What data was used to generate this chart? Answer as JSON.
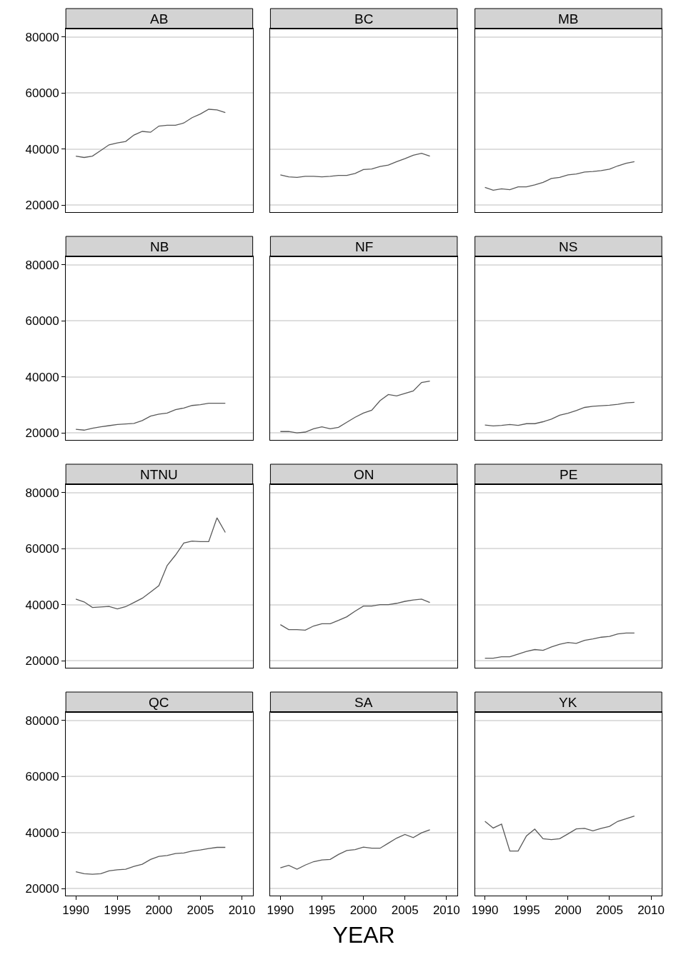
{
  "chart_data": [
    {
      "type": "line",
      "title": "AB",
      "x": [
        1990,
        1991,
        1992,
        1993,
        1994,
        1995,
        1996,
        1997,
        1998,
        1999,
        2000,
        2001,
        2002,
        2003,
        2004,
        2005,
        2006,
        2007,
        2008
      ],
      "series": [
        {
          "color": "#595959",
          "values": [
            37500,
            37000,
            37500,
            39500,
            41500,
            42200,
            42700,
            45000,
            46300,
            46000,
            48200,
            48500,
            48500,
            49300,
            51200,
            52500,
            54200,
            54000,
            53000
          ]
        }
      ],
      "xlim": [
        1988.8,
        2011.3
      ],
      "ylim": [
        17500,
        83000
      ],
      "xticks": [
        1990,
        1995,
        2000,
        2005,
        2010
      ],
      "yticks": [
        20000,
        40000,
        60000,
        80000
      ],
      "grid": "y",
      "tick_labels": "y"
    },
    {
      "type": "line",
      "title": "BC",
      "x": [
        1990,
        1991,
        1992,
        1993,
        1994,
        1995,
        1996,
        1997,
        1998,
        1999,
        2000,
        2001,
        2002,
        2003,
        2004,
        2005,
        2006,
        2007,
        2008
      ],
      "series": [
        {
          "color": "#595959",
          "values": [
            30800,
            30100,
            29900,
            30300,
            30300,
            30100,
            30300,
            30600,
            30600,
            31300,
            32700,
            32900,
            33800,
            34300,
            35500,
            36600,
            37800,
            38500,
            37500
          ]
        }
      ],
      "xlim": [
        1988.8,
        2011.3
      ],
      "ylim": [
        17500,
        83000
      ],
      "xticks": [
        1990,
        1995,
        2000,
        2005,
        2010
      ],
      "yticks": [
        20000,
        40000,
        60000,
        80000
      ],
      "grid": "y",
      "tick_labels": false
    },
    {
      "type": "line",
      "title": "MB",
      "x": [
        1990,
        1991,
        1992,
        1993,
        1994,
        1995,
        1996,
        1997,
        1998,
        1999,
        2000,
        2001,
        2002,
        2003,
        2004,
        2005,
        2006,
        2007,
        2008
      ],
      "series": [
        {
          "color": "#595959",
          "values": [
            26300,
            25300,
            25800,
            25500,
            26500,
            26500,
            27200,
            28100,
            29500,
            29900,
            30800,
            31100,
            31800,
            32000,
            32300,
            32800,
            34000,
            34900,
            35500
          ]
        }
      ],
      "xlim": [
        1988.8,
        2011.3
      ],
      "ylim": [
        17500,
        83000
      ],
      "xticks": [
        1990,
        1995,
        2000,
        2005,
        2010
      ],
      "yticks": [
        20000,
        40000,
        60000,
        80000
      ],
      "grid": "y",
      "tick_labels": false
    },
    {
      "type": "line",
      "title": "NB",
      "x": [
        1990,
        1991,
        1992,
        1993,
        1994,
        1995,
        1996,
        1997,
        1998,
        1999,
        2000,
        2001,
        2002,
        2003,
        2004,
        2005,
        2006,
        2007,
        2008
      ],
      "series": [
        {
          "color": "#595959",
          "values": [
            21300,
            21000,
            21700,
            22200,
            22600,
            23000,
            23200,
            23400,
            24400,
            26000,
            26700,
            27100,
            28300,
            28900,
            29800,
            30100,
            30600,
            30600,
            30600
          ]
        }
      ],
      "xlim": [
        1988.8,
        2011.3
      ],
      "ylim": [
        17500,
        83000
      ],
      "xticks": [
        1990,
        1995,
        2000,
        2005,
        2010
      ],
      "yticks": [
        20000,
        40000,
        60000,
        80000
      ],
      "grid": "y",
      "tick_labels": "y"
    },
    {
      "type": "line",
      "title": "NF",
      "x": [
        1990,
        1991,
        1992,
        1993,
        1994,
        1995,
        1996,
        1997,
        1998,
        1999,
        2000,
        2001,
        2002,
        2003,
        2004,
        2005,
        2006,
        2007,
        2008
      ],
      "series": [
        {
          "color": "#595959",
          "values": [
            20500,
            20500,
            20000,
            20300,
            21500,
            22200,
            21500,
            22000,
            23800,
            25600,
            27100,
            28100,
            31500,
            33700,
            33200,
            34100,
            35000,
            38000,
            38500
          ]
        }
      ],
      "xlim": [
        1988.8,
        2011.3
      ],
      "ylim": [
        17500,
        83000
      ],
      "xticks": [
        1990,
        1995,
        2000,
        2005,
        2010
      ],
      "yticks": [
        20000,
        40000,
        60000,
        80000
      ],
      "grid": "y",
      "tick_labels": false
    },
    {
      "type": "line",
      "title": "NS",
      "x": [
        1990,
        1991,
        1992,
        1993,
        1994,
        1995,
        1996,
        1997,
        1998,
        1999,
        2000,
        2001,
        2002,
        2003,
        2004,
        2005,
        2006,
        2007,
        2008
      ],
      "series": [
        {
          "color": "#595959",
          "values": [
            22800,
            22500,
            22700,
            23000,
            22700,
            23300,
            23300,
            24000,
            24900,
            26300,
            27000,
            28000,
            29100,
            29500,
            29700,
            29900,
            30200,
            30700,
            30900
          ]
        }
      ],
      "xlim": [
        1988.8,
        2011.3
      ],
      "ylim": [
        17500,
        83000
      ],
      "xticks": [
        1990,
        1995,
        2000,
        2005,
        2010
      ],
      "yticks": [
        20000,
        40000,
        60000,
        80000
      ],
      "grid": "y",
      "tick_labels": false
    },
    {
      "type": "line",
      "title": "NTNU",
      "x": [
        1990,
        1991,
        1992,
        1993,
        1994,
        1995,
        1996,
        1997,
        1998,
        1999,
        2000,
        2001,
        2002,
        2003,
        2004,
        2005,
        2006,
        2007,
        2008
      ],
      "series": [
        {
          "color": "#595959",
          "values": [
            42000,
            41000,
            39000,
            39200,
            39400,
            38500,
            39300,
            40800,
            42300,
            44500,
            46800,
            54000,
            57700,
            62000,
            62700,
            62500,
            62500,
            71000,
            65800
          ]
        }
      ],
      "xlim": [
        1988.8,
        2011.3
      ],
      "ylim": [
        17500,
        83000
      ],
      "xticks": [
        1990,
        1995,
        2000,
        2005,
        2010
      ],
      "yticks": [
        20000,
        40000,
        60000,
        80000
      ],
      "grid": "y",
      "tick_labels": "y"
    },
    {
      "type": "line",
      "title": "ON",
      "x": [
        1990,
        1991,
        1992,
        1993,
        1994,
        1995,
        1996,
        1997,
        1998,
        1999,
        2000,
        2001,
        2002,
        2003,
        2004,
        2005,
        2006,
        2007,
        2008
      ],
      "series": [
        {
          "color": "#595959",
          "values": [
            32900,
            31100,
            31100,
            30900,
            32400,
            33200,
            33200,
            34400,
            35700,
            37700,
            39500,
            39500,
            40000,
            40000,
            40500,
            41200,
            41700,
            42000,
            40800
          ]
        }
      ],
      "xlim": [
        1988.8,
        2011.3
      ],
      "ylim": [
        17500,
        83000
      ],
      "xticks": [
        1990,
        1995,
        2000,
        2005,
        2010
      ],
      "yticks": [
        20000,
        40000,
        60000,
        80000
      ],
      "grid": "y",
      "tick_labels": false
    },
    {
      "type": "line",
      "title": "PE",
      "x": [
        1990,
        1991,
        1992,
        1993,
        1994,
        1995,
        1996,
        1997,
        1998,
        1999,
        2000,
        2001,
        2002,
        2003,
        2004,
        2005,
        2006,
        2007,
        2008
      ],
      "series": [
        {
          "color": "#595959",
          "values": [
            20900,
            20900,
            21400,
            21400,
            22400,
            23300,
            24000,
            23700,
            24900,
            25900,
            26500,
            26200,
            27300,
            27800,
            28400,
            28700,
            29600,
            29900,
            29900
          ]
        }
      ],
      "xlim": [
        1988.8,
        2011.3
      ],
      "ylim": [
        17500,
        83000
      ],
      "xticks": [
        1990,
        1995,
        2000,
        2005,
        2010
      ],
      "yticks": [
        20000,
        40000,
        60000,
        80000
      ],
      "grid": "y",
      "tick_labels": false
    },
    {
      "type": "line",
      "title": "QC",
      "x": [
        1990,
        1991,
        1992,
        1993,
        1994,
        1995,
        1996,
        1997,
        1998,
        1999,
        2000,
        2001,
        2002,
        2003,
        2004,
        2005,
        2006,
        2007,
        2008
      ],
      "series": [
        {
          "color": "#595959",
          "values": [
            26000,
            25300,
            25100,
            25300,
            26300,
            26700,
            26900,
            27900,
            28700,
            30400,
            31500,
            31800,
            32500,
            32700,
            33400,
            33800,
            34300,
            34700,
            34700
          ]
        }
      ],
      "xlim": [
        1988.8,
        2011.3
      ],
      "ylim": [
        17500,
        83000
      ],
      "xticks": [
        1990,
        1995,
        2000,
        2005,
        2010
      ],
      "yticks": [
        20000,
        40000,
        60000,
        80000
      ],
      "grid": "y"
    },
    {
      "type": "line",
      "title": "SA",
      "xlabel": "YEAR",
      "x": [
        1990,
        1991,
        1992,
        1993,
        1994,
        1995,
        1996,
        1997,
        1998,
        1999,
        2000,
        2001,
        2002,
        2003,
        2004,
        2005,
        2006,
        2007,
        2008
      ],
      "series": [
        {
          "color": "#595959",
          "values": [
            27400,
            28300,
            26900,
            28400,
            29600,
            30200,
            30400,
            32200,
            33600,
            33900,
            34800,
            34400,
            34400,
            36200,
            38000,
            39300,
            38200,
            39900,
            41000
          ]
        }
      ],
      "xlim": [
        1988.8,
        2011.3
      ],
      "ylim": [
        17500,
        83000
      ],
      "xticks": [
        1990,
        1995,
        2000,
        2005,
        2010
      ],
      "yticks": [
        20000,
        40000,
        60000,
        80000
      ],
      "grid": "y",
      "tick_labels": "x"
    },
    {
      "type": "line",
      "title": "YK",
      "x": [
        1990,
        1991,
        1992,
        1993,
        1994,
        1995,
        1996,
        1997,
        1998,
        1999,
        2000,
        2001,
        2002,
        2003,
        2004,
        2005,
        2006,
        2007,
        2008
      ],
      "series": [
        {
          "color": "#595959",
          "values": [
            44000,
            41600,
            43000,
            33400,
            33400,
            38800,
            41200,
            37800,
            37500,
            37800,
            39500,
            41300,
            41500,
            40600,
            41500,
            42200,
            44000,
            44900,
            45900
          ]
        }
      ],
      "xlim": [
        1988.8,
        2011.3
      ],
      "ylim": [
        17500,
        83000
      ],
      "xticks": [
        1990,
        1995,
        2000,
        2005,
        2010
      ],
      "yticks": [
        20000,
        40000,
        60000,
        80000
      ],
      "grid": "y",
      "tick_labels": "x"
    }
  ]
}
